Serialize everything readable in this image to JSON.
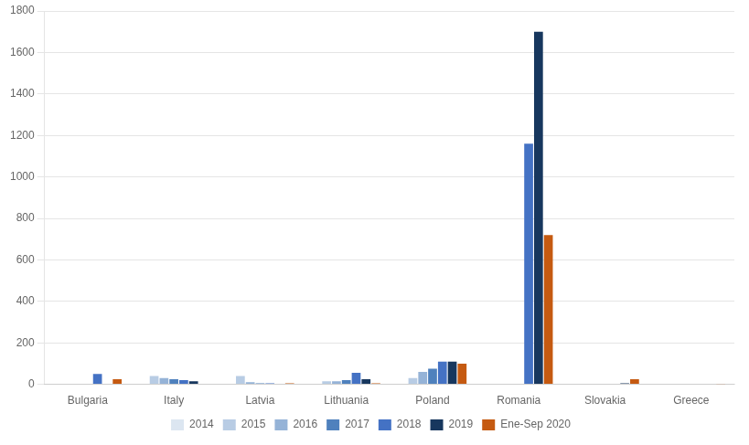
{
  "chart_data": {
    "type": "bar",
    "categories": [
      "Bulgaria",
      "Italy",
      "Latvia",
      "Lithuania",
      "Poland",
      "Romania",
      "Slovakia",
      "Greece"
    ],
    "series": [
      {
        "name": "2014",
        "color": "#dce6f1",
        "values": [
          0,
          0,
          0,
          0,
          0,
          0,
          0,
          0
        ]
      },
      {
        "name": "2015",
        "color": "#b8cce4",
        "values": [
          0,
          40,
          40,
          15,
          30,
          0,
          0,
          0
        ]
      },
      {
        "name": "2016",
        "color": "#95b3d7",
        "values": [
          0,
          30,
          10,
          15,
          60,
          0,
          0,
          0
        ]
      },
      {
        "name": "2017",
        "color": "#4f81bd",
        "values": [
          0,
          25,
          5,
          20,
          75,
          0,
          0,
          0
        ]
      },
      {
        "name": "2018",
        "color": "#4472c4",
        "values": [
          50,
          20,
          5,
          55,
          110,
          1160,
          0,
          0
        ]
      },
      {
        "name": "2019",
        "color": "#17375e",
        "values": [
          0,
          15,
          0,
          25,
          110,
          1700,
          5,
          0
        ]
      },
      {
        "name": "Ene-Sep 2020",
        "color": "#c55a11",
        "values": [
          25,
          0,
          5,
          5,
          100,
          720,
          25,
          2
        ]
      }
    ],
    "ylim": [
      0,
      1800
    ],
    "yticks": [
      0,
      200,
      400,
      600,
      800,
      1000,
      1200,
      1400,
      1600,
      1800
    ],
    "grid": true,
    "legend": "bottom"
  }
}
